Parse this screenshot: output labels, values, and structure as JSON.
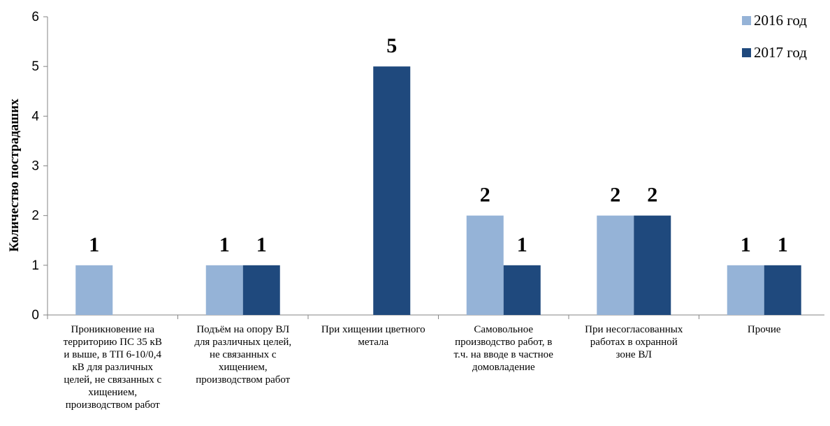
{
  "chart_data": {
    "type": "bar",
    "categories": [
      "Проникновение на территорию ПС 35 кВ и выше, в ТП 6-10/0,4 кВ  для различных целей, не связанных с хищением, производством работ",
      "Подъём на опору ВЛ для различных целей, не связанных с хищением, производством работ",
      "При хищении цветного метала",
      "Самовольное производство работ, в т.ч. на вводе в частное домовладение",
      "При несогласованных работах в охранной зоне ВЛ",
      "Прочие"
    ],
    "category_lines": [
      [
        "Проникновение на",
        "территорию ПС 35 кВ",
        "и выше, в ТП 6-10/0,4",
        "кВ  для различных",
        "целей, не связанных с",
        "хищением,",
        "производством работ"
      ],
      [
        "Подъём на опору ВЛ",
        "для различных целей,",
        "не связанных с",
        "хищением,",
        "производством работ"
      ],
      [
        "При хищении цветного",
        "метала"
      ],
      [
        "Самовольное",
        "производство работ, в",
        "т.ч. на вводе в частное",
        "домовладение"
      ],
      [
        "При несогласованных",
        "работах в охранной",
        "зоне ВЛ"
      ],
      [
        "Прочие"
      ]
    ],
    "series": [
      {
        "name": "2016 год",
        "color": "#95b3d7",
        "values": [
          1,
          1,
          null,
          2,
          2,
          1
        ]
      },
      {
        "name": "2017 год",
        "color": "#1f497d",
        "values": [
          null,
          1,
          5,
          1,
          2,
          1
        ]
      }
    ],
    "ylabel": "Количество пострадаших",
    "ylim": [
      0,
      6
    ],
    "yticks": [
      "0",
      "1",
      "2",
      "3",
      "4",
      "5",
      "6"
    ],
    "grid": false,
    "legend_position": "top-right"
  }
}
